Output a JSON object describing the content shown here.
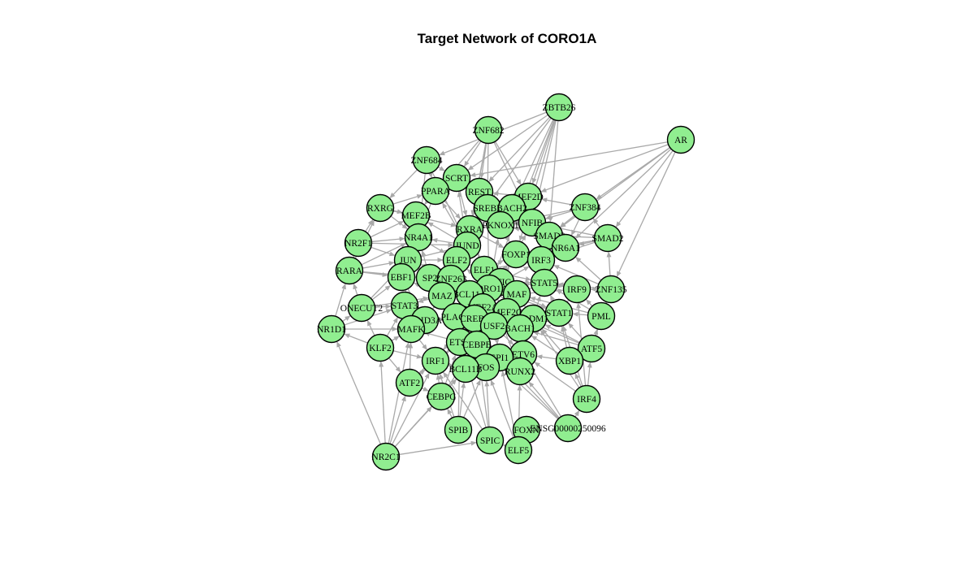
{
  "title": "Target Network of CORO1A",
  "colors": {
    "node_fill": "#90EE90",
    "node_stroke": "#000000",
    "edge": "#A9A9A9"
  },
  "nodes": [
    {
      "id": "ZBTB26"
    },
    {
      "id": "AR"
    },
    {
      "id": "ZNF682"
    },
    {
      "id": "ZNF684"
    },
    {
      "id": "SCRT"
    },
    {
      "id": "PPARA"
    },
    {
      "id": "REST"
    },
    {
      "id": "MEF2D"
    },
    {
      "id": "ZNF384"
    },
    {
      "id": "RXRG"
    },
    {
      "id": "MEF2B"
    },
    {
      "id": "SREBF"
    },
    {
      "id": "BACH2"
    },
    {
      "id": "PKNOX1"
    },
    {
      "id": "NFIB"
    },
    {
      "id": "RXRA"
    },
    {
      "id": "NR4A1"
    },
    {
      "id": "SMAD3"
    },
    {
      "id": "SMAD2"
    },
    {
      "id": "NR2F1"
    },
    {
      "id": "JUND"
    },
    {
      "id": "NR6A1"
    },
    {
      "id": "FOXP1"
    },
    {
      "id": "RARA"
    },
    {
      "id": "JUN"
    },
    {
      "id": "ELF2"
    },
    {
      "id": "IRF3"
    },
    {
      "id": "ELF1"
    },
    {
      "id": "EBF1"
    },
    {
      "id": "SP2"
    },
    {
      "id": "ZNF263"
    },
    {
      "id": "NFIC"
    },
    {
      "id": "STAT5"
    },
    {
      "id": "IRF9"
    },
    {
      "id": "ZNF135"
    },
    {
      "id": "CORO1A"
    },
    {
      "id": "BCL11A"
    },
    {
      "id": "MAZ"
    },
    {
      "id": "MAF"
    },
    {
      "id": "ONECUT2"
    },
    {
      "id": "STAT3"
    },
    {
      "id": "MEF2A"
    },
    {
      "id": "MEF2C"
    },
    {
      "id": "STAT1"
    },
    {
      "id": "PML"
    },
    {
      "id": "PRDM1"
    },
    {
      "id": "ARID3A"
    },
    {
      "id": "PLAGL"
    },
    {
      "id": "CREB1"
    },
    {
      "id": "NR1D1"
    },
    {
      "id": "MAFK"
    },
    {
      "id": "USF2"
    },
    {
      "id": "BACH1"
    },
    {
      "id": "ETS1"
    },
    {
      "id": "KLF2"
    },
    {
      "id": "ATF5"
    },
    {
      "id": "CEBPB"
    },
    {
      "id": "ETV6"
    },
    {
      "id": "SPI1"
    },
    {
      "id": "XBP1"
    },
    {
      "id": "IRF1"
    },
    {
      "id": "FOS"
    },
    {
      "id": "RUNX2"
    },
    {
      "id": "BCL11B"
    },
    {
      "id": "ATF2"
    },
    {
      "id": "IRF4"
    },
    {
      "id": "CEBPG"
    },
    {
      "id": "SPIB"
    },
    {
      "id": "FOXN"
    },
    {
      "id": "ENSG00000250096"
    },
    {
      "id": "SPIC"
    },
    {
      "id": "ELF5"
    },
    {
      "id": "NR2C1"
    }
  ],
  "edges": [
    [
      "ZBTB26",
      "ZNF684"
    ],
    [
      "ZBTB26",
      "SCRT"
    ],
    [
      "ZBTB26",
      "MEF2D"
    ],
    [
      "ZBTB26",
      "NFIB"
    ],
    [
      "ZBTB26",
      "BACH2"
    ],
    [
      "ZBTB26",
      "SMAD3"
    ],
    [
      "ZBTB26",
      "RXRA"
    ],
    [
      "ZBTB26",
      "REST"
    ],
    [
      "ZBTB26",
      "CORO1A"
    ],
    [
      "ZBTB26",
      "FOXP1"
    ],
    [
      "AR",
      "ZNF384"
    ],
    [
      "AR",
      "SMAD2"
    ],
    [
      "AR",
      "ZNF135"
    ],
    [
      "AR",
      "MEF2D"
    ],
    [
      "AR",
      "SCRT"
    ],
    [
      "AR",
      "NR6A1"
    ],
    [
      "AR",
      "SMAD3"
    ],
    [
      "ZNF682",
      "REST"
    ],
    [
      "ZNF682",
      "SCRT"
    ],
    [
      "ZNF682",
      "MEF2D"
    ],
    [
      "ZNF682",
      "PPARA"
    ],
    [
      "ZNF682",
      "SREBF"
    ],
    [
      "ZNF682",
      "RXRA"
    ],
    [
      "ZNF682",
      "NFIB"
    ],
    [
      "ZNF682",
      "JUND"
    ],
    [
      "ZNF684",
      "SCRT"
    ],
    [
      "ZNF684",
      "PPARA"
    ],
    [
      "ZNF684",
      "RXRG"
    ],
    [
      "ZNF684",
      "NR4A1"
    ],
    [
      "ZNF684",
      "JUND"
    ],
    [
      "NR2C1",
      "ATF2"
    ],
    [
      "NR2C1",
      "KLF2"
    ],
    [
      "NR2C1",
      "IRF1"
    ],
    [
      "NR2C1",
      "CEBPG"
    ],
    [
      "NR2C1",
      "SPIC"
    ],
    [
      "NR2C1",
      "MAFK"
    ],
    [
      "NR2C1",
      "NR1D1"
    ],
    [
      "NR2C1",
      "BCL11B"
    ],
    [
      "ENSG00000250096",
      "IRF4"
    ],
    [
      "ENSG00000250096",
      "RUNX2"
    ],
    [
      "ENSG00000250096",
      "ETV6"
    ],
    [
      "ENSG00000250096",
      "SPI1"
    ],
    [
      "ENSG00000250096",
      "CEBPB"
    ],
    [
      "ELF5",
      "SPIC"
    ],
    [
      "ELF5",
      "FOXN"
    ],
    [
      "ELF5",
      "RUNX2"
    ],
    [
      "ELF5",
      "FOS"
    ],
    [
      "ELF5",
      "SPI1"
    ],
    [
      "SPIB",
      "CEBPG"
    ],
    [
      "SPIB",
      "IRF1"
    ],
    [
      "SPIB",
      "BCL11B"
    ],
    [
      "SPIB",
      "ETS1"
    ],
    [
      "SPIB",
      "FOS"
    ],
    [
      "SPIC",
      "IRF1"
    ],
    [
      "SPIC",
      "FOS"
    ],
    [
      "SPIC",
      "ETS1"
    ],
    [
      "SPIC",
      "CEBPB"
    ],
    [
      "IRF4",
      "XBP1"
    ],
    [
      "IRF4",
      "ATF5"
    ],
    [
      "IRF4",
      "PRDM1"
    ],
    [
      "IRF4",
      "ETV6"
    ],
    [
      "IRF4",
      "IRF9"
    ],
    [
      "IRF4",
      "STAT1"
    ],
    [
      "XBP1",
      "ATF5"
    ],
    [
      "XBP1",
      "ETV6"
    ],
    [
      "XBP1",
      "PRDM1"
    ],
    [
      "XBP1",
      "STAT1"
    ],
    [
      "XBP1",
      "BACH1"
    ],
    [
      "ATF5",
      "PML"
    ],
    [
      "ATF5",
      "ZNF135"
    ],
    [
      "ATF5",
      "STAT1"
    ],
    [
      "ATF5",
      "PRDM1"
    ],
    [
      "ATF5",
      "BACH1"
    ],
    [
      "ATF5",
      "MEF2C"
    ],
    [
      "PML",
      "ZNF135"
    ],
    [
      "PML",
      "IRF9"
    ],
    [
      "PML",
      "STAT1"
    ],
    [
      "PML",
      "STAT5"
    ],
    [
      "PML",
      "MAF"
    ],
    [
      "ZNF135",
      "IRF9"
    ],
    [
      "ZNF135",
      "SMAD2"
    ],
    [
      "ZNF135",
      "NR6A1"
    ],
    [
      "ZNF135",
      "STAT5"
    ],
    [
      "ZNF135",
      "IRF3"
    ],
    [
      "SMAD2",
      "SMAD3"
    ],
    [
      "SMAD2",
      "NR6A1"
    ],
    [
      "SMAD2",
      "ZNF384"
    ],
    [
      "SMAD2",
      "IRF3"
    ],
    [
      "SMAD2",
      "FOXP1"
    ],
    [
      "SMAD2",
      "NFIB"
    ],
    [
      "ZNF384",
      "MEF2D"
    ],
    [
      "ZNF384",
      "NFIB"
    ],
    [
      "ZNF384",
      "SMAD3"
    ],
    [
      "ZNF384",
      "PKNOX1"
    ],
    [
      "ZNF384",
      "NR6A1"
    ],
    [
      "KLF2",
      "NR1D1"
    ],
    [
      "KLF2",
      "ONECUT2"
    ],
    [
      "KLF2",
      "STAT3"
    ],
    [
      "KLF2",
      "MAFK"
    ],
    [
      "KLF2",
      "ARID3A"
    ],
    [
      "KLF2",
      "IRF1"
    ],
    [
      "KLF2",
      "ATF2"
    ],
    [
      "NR1D1",
      "ONECUT2"
    ],
    [
      "NR1D1",
      "STAT3"
    ],
    [
      "NR1D1",
      "RARA"
    ],
    [
      "NR1D1",
      "MAFK"
    ],
    [
      "ONECUT2",
      "RARA"
    ],
    [
      "ONECUT2",
      "EBF1"
    ],
    [
      "ONECUT2",
      "STAT3"
    ],
    [
      "ONECUT2",
      "JUN"
    ],
    [
      "ONECUT2",
      "MAZ"
    ],
    [
      "RARA",
      "NR2F1"
    ],
    [
      "RARA",
      "JUN"
    ],
    [
      "RARA",
      "EBF1"
    ],
    [
      "RARA",
      "NR4A1"
    ],
    [
      "RARA",
      "SP2"
    ],
    [
      "RARA",
      "RXRG"
    ],
    [
      "NR2F1",
      "RXRG"
    ],
    [
      "NR2F1",
      "NR4A1"
    ],
    [
      "NR2F1",
      "JUN"
    ],
    [
      "NR2F1",
      "MEF2B"
    ],
    [
      "NR2F1",
      "JUND"
    ],
    [
      "RXRG",
      "MEF2B"
    ],
    [
      "RXRG",
      "PPARA"
    ],
    [
      "RXRG",
      "NR4A1"
    ],
    [
      "RXRG",
      "RXRA"
    ],
    [
      "ATF2",
      "IRF1"
    ],
    [
      "ATF2",
      "CEBPG"
    ],
    [
      "ATF2",
      "MAFK"
    ],
    [
      "ATF2",
      "ETS1"
    ],
    [
      "ATF2",
      "CREB1"
    ],
    [
      "CEBPG",
      "CEBPB"
    ],
    [
      "CEBPG",
      "IRF1"
    ],
    [
      "CEBPG",
      "BCL11B"
    ],
    [
      "CEBPG",
      "ETS1"
    ],
    [
      "CORO1A",
      "BCL11A"
    ],
    [
      "CORO1A",
      "NFIC"
    ],
    [
      "CORO1A",
      "MAF"
    ],
    [
      "CORO1A",
      "ELF1"
    ],
    [
      "CORO1A",
      "ZNF263"
    ],
    [
      "CORO1A",
      "MEF2A"
    ],
    [
      "CORO1A",
      "MEF2C"
    ],
    [
      "CORO1A",
      "STAT5"
    ],
    [
      "CORO1A",
      "SPI1"
    ],
    [
      "CORO1A",
      "RUNX2"
    ],
    [
      "CORO1A",
      "IRF1"
    ],
    [
      "CORO1A",
      "ETS1"
    ],
    [
      "CORO1A",
      "JUN"
    ],
    [
      "CORO1A",
      "ELF2"
    ],
    [
      "CORO1A",
      "RXRA"
    ],
    [
      "CORO1A",
      "SREBF"
    ],
    [
      "CORO1A",
      "MAZ"
    ],
    [
      "CORO1A",
      "CREB1"
    ],
    [
      "CORO1A",
      "USF2"
    ],
    [
      "CORO1A",
      "PRDM1"
    ],
    [
      "CORO1A",
      "STAT1"
    ],
    [
      "CORO1A",
      "FOXP1"
    ],
    [
      "CORO1A",
      "IRF3"
    ],
    [
      "CORO1A",
      "PKNOX1"
    ],
    [
      "BCL11A",
      "MAZ"
    ],
    [
      "BCL11A",
      "ZNF263"
    ],
    [
      "BCL11A",
      "SP2"
    ],
    [
      "BCL11A",
      "PLAGL"
    ],
    [
      "BCL11A",
      "CREB1"
    ],
    [
      "BCL11A",
      "ELF1"
    ],
    [
      "BCL11A",
      "ELF2"
    ],
    [
      "BCL11A",
      "MEF2A"
    ],
    [
      "MAZ",
      "SP2"
    ],
    [
      "MAZ",
      "ZNF263"
    ],
    [
      "MAZ",
      "PLAGL"
    ],
    [
      "MAZ",
      "ARID3A"
    ],
    [
      "MAZ",
      "STAT3"
    ],
    [
      "MAZ",
      "EBF1"
    ],
    [
      "SP2",
      "ZNF263"
    ],
    [
      "SP2",
      "EBF1"
    ],
    [
      "SP2",
      "JUN"
    ],
    [
      "SP2",
      "ELF2"
    ],
    [
      "SP2",
      "NR4A1"
    ],
    [
      "JUN",
      "JUND"
    ],
    [
      "JUN",
      "NR4A1"
    ],
    [
      "JUN",
      "EBF1"
    ],
    [
      "JUN",
      "STAT3"
    ],
    [
      "JUN",
      "MEF2B"
    ],
    [
      "JUN",
      "ELF2"
    ],
    [
      "JUND",
      "RXRA"
    ],
    [
      "JUND",
      "NR4A1"
    ],
    [
      "JUND",
      "ELF2"
    ],
    [
      "JUND",
      "SCRT"
    ],
    [
      "JUND",
      "PPARA"
    ],
    [
      "JUND",
      "MEF2B"
    ],
    [
      "ELF1",
      "ELF2"
    ],
    [
      "ELF1",
      "NFIC"
    ],
    [
      "ELF1",
      "FOXP1"
    ],
    [
      "ELF1",
      "IRF3"
    ],
    [
      "ELF1",
      "RXRA"
    ],
    [
      "ELF1",
      "STAT5"
    ],
    [
      "NFIC",
      "MAF"
    ],
    [
      "NFIC",
      "NFIB"
    ],
    [
      "NFIC",
      "STAT5"
    ],
    [
      "NFIC",
      "MEF2A"
    ],
    [
      "NFIC",
      "FOXP1"
    ],
    [
      "MAF",
      "STAT5"
    ],
    [
      "MAF",
      "PRDM1"
    ],
    [
      "MAF",
      "MEF2C"
    ],
    [
      "MAF",
      "IRF9"
    ],
    [
      "MAF",
      "STAT1"
    ],
    [
      "MEF2A",
      "MEF2C"
    ],
    [
      "MEF2A",
      "CREB1"
    ],
    [
      "MEF2A",
      "USF2"
    ],
    [
      "MEF2A",
      "BACH1"
    ],
    [
      "MEF2C",
      "PRDM1"
    ],
    [
      "MEF2C",
      "BACH1"
    ],
    [
      "MEF2C",
      "USF2"
    ],
    [
      "MEF2C",
      "STAT1"
    ],
    [
      "CREB1",
      "USF2"
    ],
    [
      "CREB1",
      "PLAGL"
    ],
    [
      "CREB1",
      "ETS1"
    ],
    [
      "CREB1",
      "CEBPB"
    ],
    [
      "CREB1",
      "ARID3A"
    ],
    [
      "USF2",
      "BACH1"
    ],
    [
      "USF2",
      "CEBPB"
    ],
    [
      "USF2",
      "SPI1"
    ],
    [
      "USF2",
      "ETV6"
    ],
    [
      "ETS1",
      "CEBPB"
    ],
    [
      "ETS1",
      "IRF1"
    ],
    [
      "ETS1",
      "BCL11B"
    ],
    [
      "ETS1",
      "PLAGL"
    ],
    [
      "ETS1",
      "MAFK"
    ],
    [
      "CEBPB",
      "SPI1"
    ],
    [
      "CEBPB",
      "FOS"
    ],
    [
      "CEBPB",
      "BCL11B"
    ],
    [
      "SPI1",
      "ETV6"
    ],
    [
      "SPI1",
      "FOS"
    ],
    [
      "SPI1",
      "RUNX2"
    ],
    [
      "SPI1",
      "BCL11B"
    ],
    [
      "ETV6",
      "RUNX2"
    ],
    [
      "ETV6",
      "BACH1"
    ],
    [
      "ETV6",
      "PRDM1"
    ],
    [
      "BACH1",
      "PRDM1"
    ],
    [
      "BACH1",
      "STAT1"
    ],
    [
      "PRDM1",
      "STAT1"
    ],
    [
      "PRDM1",
      "STAT5"
    ],
    [
      "STAT1",
      "STAT5"
    ],
    [
      "STAT1",
      "IRF9"
    ],
    [
      "STAT5",
      "IRF9"
    ],
    [
      "STAT5",
      "IRF3"
    ],
    [
      "IRF3",
      "NR6A1"
    ],
    [
      "IRF3",
      "FOXP1"
    ],
    [
      "IRF3",
      "SMAD3"
    ],
    [
      "NR6A1",
      "SMAD3"
    ],
    [
      "NR6A1",
      "NFIB"
    ],
    [
      "SMAD3",
      "NFIB"
    ],
    [
      "SMAD3",
      "MEF2D"
    ],
    [
      "SMAD3",
      "PKNOX1"
    ],
    [
      "NFIB",
      "MEF2D"
    ],
    [
      "NFIB",
      "PKNOX1"
    ],
    [
      "NFIB",
      "BACH2"
    ],
    [
      "MEF2D",
      "BACH2"
    ],
    [
      "MEF2D",
      "REST"
    ],
    [
      "BACH2",
      "SREBF"
    ],
    [
      "BACH2",
      "PKNOX1"
    ],
    [
      "PKNOX1",
      "RXRA"
    ],
    [
      "PKNOX1",
      "SREBF"
    ],
    [
      "PKNOX1",
      "FOXP1"
    ],
    [
      "SREBF",
      "REST"
    ],
    [
      "SREBF",
      "RXRA"
    ],
    [
      "REST",
      "SCRT"
    ],
    [
      "REST",
      "RXRA"
    ],
    [
      "SCRT",
      "PPARA"
    ],
    [
      "SCRT",
      "RXRA"
    ],
    [
      "PPARA",
      "MEF2B"
    ],
    [
      "PPARA",
      "NR4A1"
    ],
    [
      "PPARA",
      "RXRA"
    ],
    [
      "MEF2B",
      "NR4A1"
    ],
    [
      "NR4A1",
      "ELF2"
    ],
    [
      "RXRA",
      "ELF2"
    ],
    [
      "RXRA",
      "FOXP1"
    ],
    [
      "EBF1",
      "STAT3"
    ],
    [
      "EBF1",
      "ARID3A"
    ],
    [
      "STAT3",
      "ARID3A"
    ],
    [
      "STAT3",
      "MAFK"
    ],
    [
      "ARID3A",
      "MAFK"
    ],
    [
      "ARID3A",
      "PLAGL"
    ],
    [
      "MAFK",
      "IRF1"
    ],
    [
      "PLAGL",
      "ZNF263"
    ],
    [
      "IRF1",
      "BCL11B"
    ],
    [
      "BCL11B",
      "FOS"
    ],
    [
      "FOS",
      "RUNX2"
    ]
  ]
}
